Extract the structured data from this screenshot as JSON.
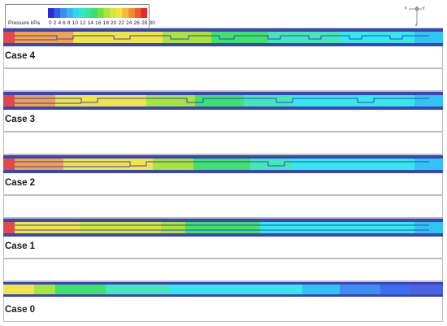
{
  "legend": {
    "title": "Pressure  kPa",
    "ticks": "0 2 4 6 8 10 12 14 16 18 20 22 24 26 28 30",
    "colors": [
      "#2b2bd6",
      "#2f63e6",
      "#3a8ff0",
      "#3bb3f2",
      "#2fd7f0",
      "#2fe6c6",
      "#35e69a",
      "#3be06a",
      "#6ee33a",
      "#a5e63a",
      "#d4e83b",
      "#f3e23b",
      "#f6b934",
      "#f38b2e",
      "#ee5a2b",
      "#e02a2a"
    ]
  },
  "axis": {
    "x": "x",
    "y": "y",
    "z": "z"
  },
  "cases": [
    {
      "label": "Case 4"
    },
    {
      "label": "Case 3"
    },
    {
      "label": "Case 2"
    },
    {
      "label": "Case 1"
    },
    {
      "label": "Case 0"
    }
  ],
  "colors": {
    "pipe_outline": "#3a46b8",
    "background_blue": "#4a63e0",
    "red": "#e04a4a",
    "orange": "#f2a24a",
    "yellow": "#f0e447",
    "lime": "#a7e43c",
    "green": "#3fe26a",
    "cyan_green": "#44e8b8",
    "cyan": "#36e8ea",
    "light_blue": "#30c4f2",
    "blue": "#3a8ff0"
  }
}
